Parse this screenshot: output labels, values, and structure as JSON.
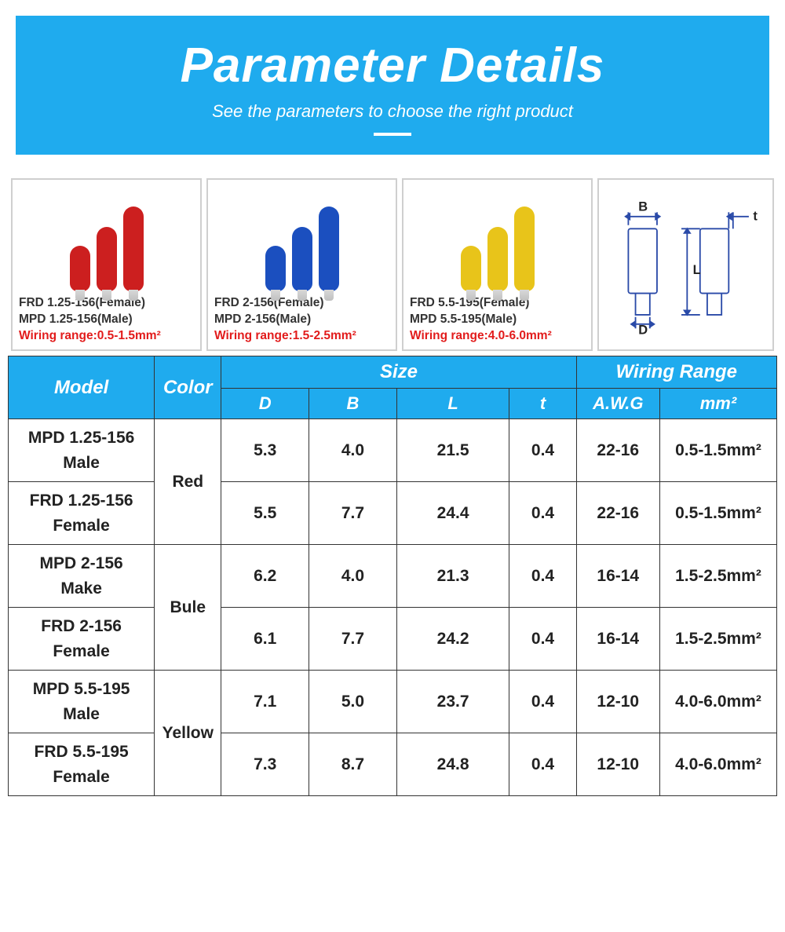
{
  "banner": {
    "title": "Parameter Details",
    "subtitle": "See the parameters to choose the right product",
    "bg_color": "#1fabee",
    "text_color": "#ffffff"
  },
  "cards": [
    {
      "color": "#cc1f1f",
      "female": "FRD 1.25-156(Female)",
      "male": "MPD 1.25-156(Male)",
      "wiring_label": "Wiring range:0.5-1.5mm²"
    },
    {
      "color": "#1b4fbf",
      "female": "FRD 2-156(Female)",
      "male": "MPD 2-156(Male)",
      "wiring_label": "Wiring range:1.5-2.5mm²"
    },
    {
      "color": "#e8c41a",
      "female": "FRD 5.5-195(Female)",
      "male": "MPD 5.5-195(Male)",
      "wiring_label": "Wiring range:4.0-6.0mm²"
    }
  ],
  "diagram_labels": {
    "B": "B",
    "L": "L",
    "D": "D",
    "t": "t"
  },
  "table": {
    "header": {
      "model": "Model",
      "color": "Color",
      "size": "Size",
      "wiring_range": "Wiring Range",
      "D": "D",
      "B": "B",
      "L": "L",
      "t": "t",
      "awg": "A.W.G",
      "mm": "mm²"
    },
    "groups": [
      {
        "color": "Red",
        "rows": [
          {
            "model_line1": "MPD 1.25-156",
            "model_line2": "Male",
            "D": "5.3",
            "B": "4.0",
            "L": "21.5",
            "t": "0.4",
            "awg": "22-16",
            "mm": "0.5-1.5mm²"
          },
          {
            "model_line1": "FRD 1.25-156",
            "model_line2": "Female",
            "D": "5.5",
            "B": "7.7",
            "L": "24.4",
            "t": "0.4",
            "awg": "22-16",
            "mm": "0.5-1.5mm²"
          }
        ]
      },
      {
        "color": "Bule",
        "rows": [
          {
            "model_line1": "MPD 2-156",
            "model_line2": "Make",
            "D": "6.2",
            "B": "4.0",
            "L": "21.3",
            "t": "0.4",
            "awg": "16-14",
            "mm": "1.5-2.5mm²"
          },
          {
            "model_line1": "FRD 2-156",
            "model_line2": "Female",
            "D": "6.1",
            "B": "7.7",
            "L": "24.2",
            "t": "0.4",
            "awg": "16-14",
            "mm": "1.5-2.5mm²"
          }
        ]
      },
      {
        "color": "Yellow",
        "rows": [
          {
            "model_line1": "MPD 5.5-195",
            "model_line2": "Male",
            "D": "7.1",
            "B": "5.0",
            "L": "23.7",
            "t": "0.4",
            "awg": "12-10",
            "mm": "4.0-6.0mm²"
          },
          {
            "model_line1": "FRD 5.5-195",
            "model_line2": "Female",
            "D": "7.3",
            "B": "8.7",
            "L": "24.8",
            "t": "0.4",
            "awg": "12-10",
            "mm": "4.0-6.0mm²"
          }
        ]
      }
    ]
  }
}
